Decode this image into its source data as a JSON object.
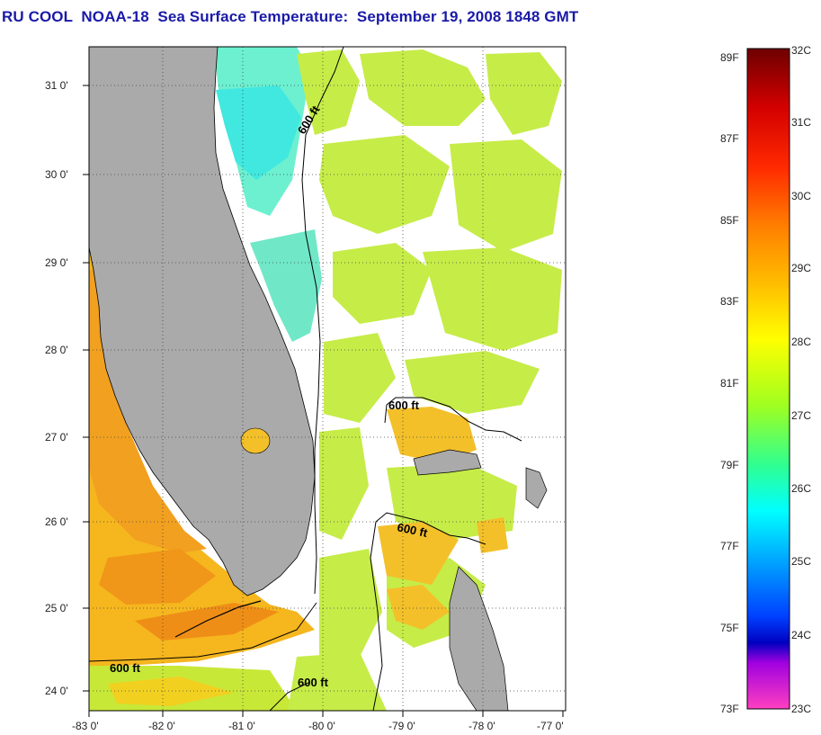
{
  "title": "RU COOL  NOAA-18  Sea Surface Temperature:  September 19, 2008 1848 GMT",
  "map": {
    "lat_labels": [
      "31 0'",
      "30 0'",
      "29 0'",
      "28 0'",
      "27 0'",
      "26 0'",
      "25 0'",
      "24 0'"
    ],
    "lon_labels": [
      "-83 0'",
      "-82 0'",
      "-81 0'",
      "-80 0'",
      "-79 0'",
      "-78 0'",
      "-77 0'"
    ],
    "contour_labels": [
      "600 ft",
      "600 ft",
      "600 ft",
      "600 ft",
      "600 ft"
    ],
    "colors": {
      "land": "#aaaaaa",
      "no_data": "#ffffff"
    }
  },
  "colorbar": {
    "fahrenheit_labels": [
      "89F",
      "87F",
      "85F",
      "83F",
      "81F",
      "79F",
      "77F",
      "75F",
      "73F"
    ],
    "celsius_labels": [
      "32C",
      "31C",
      "30C",
      "29C",
      "28C",
      "27C",
      "26C",
      "25C",
      "24C",
      "23C"
    ],
    "colors_top_to_bottom": [
      "#6e0000",
      "#d40000",
      "#ff2a00",
      "#ff8000",
      "#ffc000",
      "#ffff00",
      "#a0ff20",
      "#30ff90",
      "#00ffff",
      "#00a0ff",
      "#0040ff",
      "#0000c0",
      "#a000e0",
      "#ff40c0"
    ]
  }
}
